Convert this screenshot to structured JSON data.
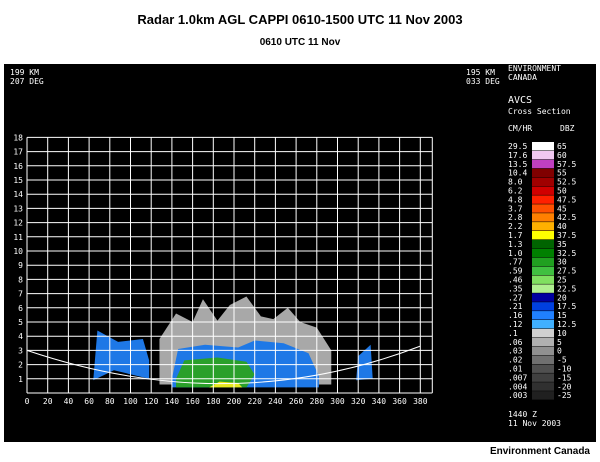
{
  "header": {
    "title": "Radar 1.0km AGL CAPPI 0610-1500 UTC  11 Nov 2003",
    "subtitle": "0610 UTC 11 Nov"
  },
  "panel": {
    "left_endpoint": {
      "range": "199 KM",
      "bearing": "207 DEG"
    },
    "right_endpoint": {
      "range": "195 KM",
      "bearing": "033 DEG"
    },
    "org": [
      "ENVIRONMENT",
      "CANADA"
    ],
    "product": [
      "AVCS",
      "Cross Section"
    ],
    "legend_header": {
      "left": "CM/HR",
      "right": "DBZ"
    },
    "legend": [
      {
        "rate": "29.5",
        "dbz": "65",
        "color": "#ffffff"
      },
      {
        "rate": "17.6",
        "dbz": "60",
        "color": "#f0c8f0"
      },
      {
        "rate": "13.5",
        "dbz": "57.5",
        "color": "#c040c0"
      },
      {
        "rate": "10.4",
        "dbz": "55",
        "color": "#800000"
      },
      {
        "rate": "8.0",
        "dbz": "52.5",
        "color": "#a00000"
      },
      {
        "rate": "6.2",
        "dbz": "50",
        "color": "#d00000"
      },
      {
        "rate": "4.8",
        "dbz": "47.5",
        "color": "#ff2000"
      },
      {
        "rate": "3.7",
        "dbz": "45",
        "color": "#ff5000"
      },
      {
        "rate": "2.8",
        "dbz": "42.5",
        "color": "#ff8000"
      },
      {
        "rate": "2.2",
        "dbz": "40",
        "color": "#ffb000"
      },
      {
        "rate": "1.7",
        "dbz": "37.5",
        "color": "#ffff00"
      },
      {
        "rate": "1.3",
        "dbz": "35",
        "color": "#006400"
      },
      {
        "rate": "1.0",
        "dbz": "32.5",
        "color": "#008000"
      },
      {
        "rate": ".77",
        "dbz": "30",
        "color": "#20a020"
      },
      {
        "rate": ".59",
        "dbz": "27.5",
        "color": "#40c040"
      },
      {
        "rate": ".46",
        "dbz": "25",
        "color": "#80e060"
      },
      {
        "rate": ".35",
        "dbz": "22.5",
        "color": "#b0f090"
      },
      {
        "rate": ".27",
        "dbz": "20",
        "color": "#0000a0"
      },
      {
        "rate": ".21",
        "dbz": "17.5",
        "color": "#0040e0"
      },
      {
        "rate": ".16",
        "dbz": "15",
        "color": "#2080ff"
      },
      {
        "rate": ".12",
        "dbz": "12.5",
        "color": "#40b0ff"
      },
      {
        "rate": ".1",
        "dbz": "10",
        "color": "#d0d0d0"
      },
      {
        "rate": ".06",
        "dbz": "5",
        "color": "#b0b0b0"
      },
      {
        "rate": ".03",
        "dbz": "0",
        "color": "#909090"
      },
      {
        "rate": ".02",
        "dbz": "-5",
        "color": "#707070"
      },
      {
        "rate": ".01",
        "dbz": "-10",
        "color": "#505050"
      },
      {
        "rate": ".007",
        "dbz": "-15",
        "color": "#404040"
      },
      {
        "rate": ".004",
        "dbz": "-20",
        "color": "#303030"
      },
      {
        "rate": ".003",
        "dbz": "-25",
        "color": "#202020"
      }
    ],
    "valid_time": "1440 Z",
    "valid_date": "11 Nov 2003",
    "y_ticks": [
      "1",
      "2",
      "3",
      "4",
      "5",
      "6",
      "7",
      "8",
      "9",
      "10",
      "11",
      "12",
      "13",
      "14",
      "15",
      "16",
      "17",
      "18"
    ],
    "x_ticks": [
      "0",
      "20",
      "40",
      "60",
      "80",
      "100",
      "120",
      "140",
      "160",
      "180",
      "200",
      "220",
      "240",
      "260",
      "280",
      "300",
      "320",
      "340",
      "360",
      "380"
    ]
  },
  "footer": {
    "credit": "Environment Canada"
  }
}
